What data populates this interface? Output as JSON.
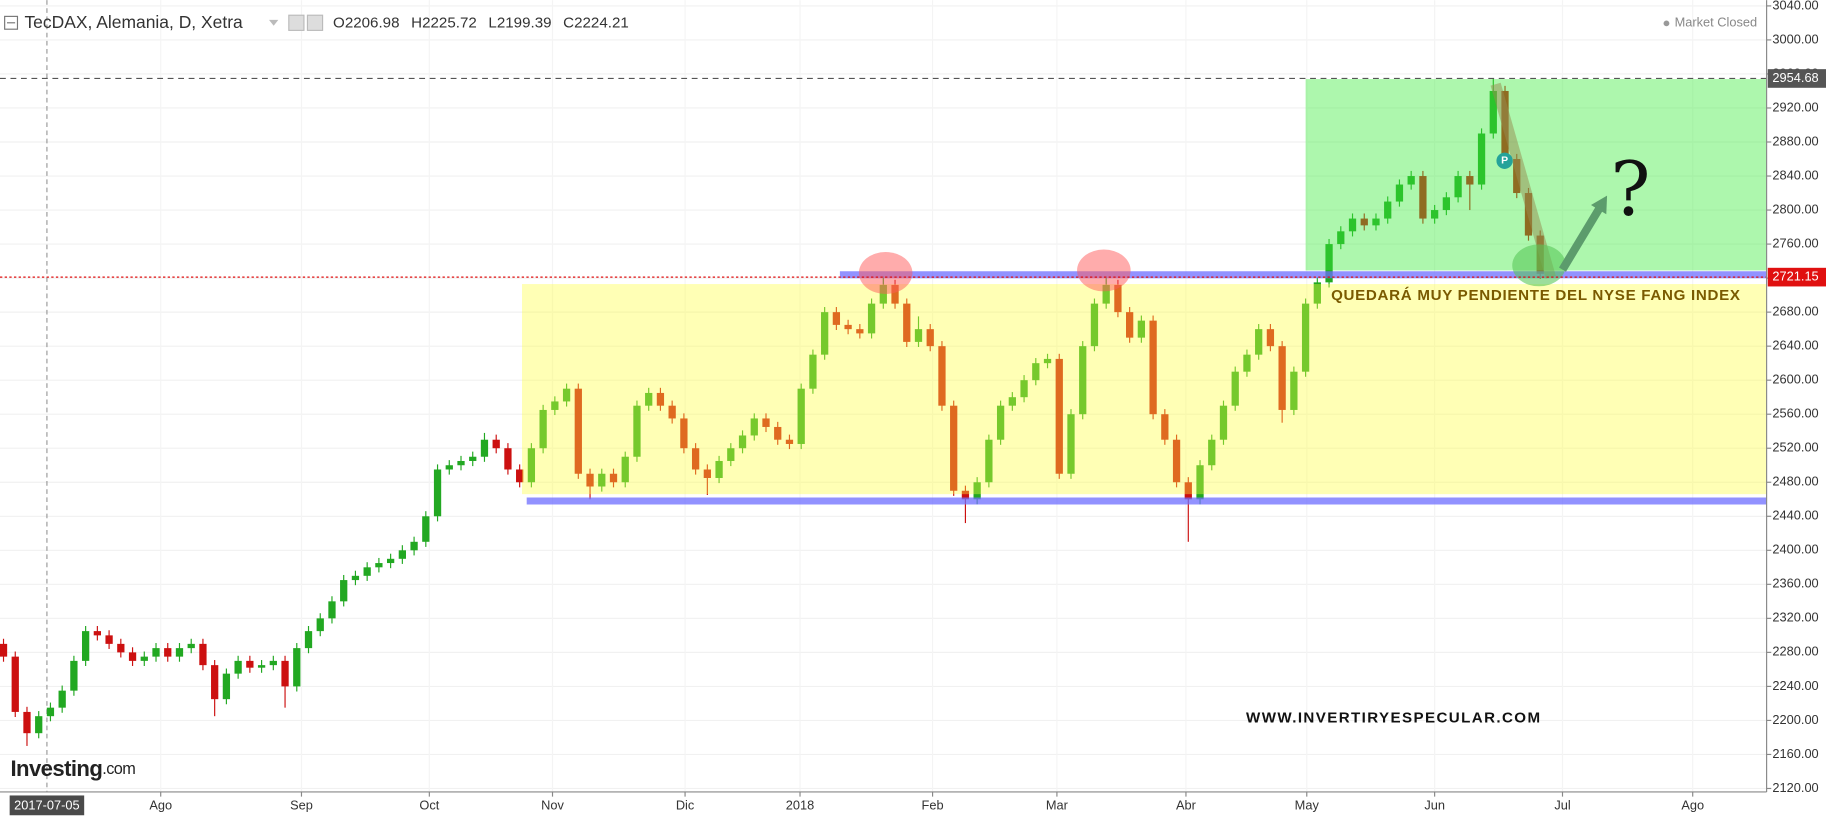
{
  "header": {
    "title": "TecDAX, Alemania, D, Xetra",
    "ohlc": [
      {
        "label": "O",
        "value": 2206.98
      },
      {
        "label": "H",
        "value": 2225.72
      },
      {
        "label": "L",
        "value": 2199.39
      },
      {
        "label": "C",
        "value": 2224.21
      }
    ],
    "status": "Market Closed"
  },
  "logo": {
    "main": "Investing",
    "suffix": ".com"
  },
  "chart_data": {
    "type": "candlestick",
    "up_color": "#22a822",
    "down_color": "#cc1010",
    "xlim": [
      -0.3,
      150.3
    ],
    "ylim": [
      2120,
      3040
    ],
    "xticks": [
      {
        "value": 13.4,
        "label": "Ago"
      },
      {
        "value": 25.4,
        "label": "Sep"
      },
      {
        "value": 36.3,
        "label": "Oct"
      },
      {
        "value": 46.8,
        "label": "Nov"
      },
      {
        "value": 58.1,
        "label": "Dic"
      },
      {
        "value": 67.9,
        "label": "2018"
      },
      {
        "value": 79.2,
        "label": "Feb"
      },
      {
        "value": 89.8,
        "label": "Mar"
      },
      {
        "value": 100.8,
        "label": "Abr"
      },
      {
        "value": 111.1,
        "label": "May"
      },
      {
        "value": 122.0,
        "label": "Jun"
      },
      {
        "value": 132.9,
        "label": "Jul"
      },
      {
        "value": 144.0,
        "label": "Ago"
      }
    ],
    "crosshair": {
      "value": 3.7,
      "label": "2017-07-05"
    },
    "yticks": [
      {
        "value": 2120,
        "label": "2120.00"
      },
      {
        "value": 2160,
        "label": "2160.00"
      },
      {
        "value": 2200,
        "label": "2200.00"
      },
      {
        "value": 2240,
        "label": "2240.00"
      },
      {
        "value": 2280,
        "label": "2280.00"
      },
      {
        "value": 2320,
        "label": "2320.00"
      },
      {
        "value": 2360,
        "label": "2360.00"
      },
      {
        "value": 2400,
        "label": "2400.00"
      },
      {
        "value": 2440,
        "label": "2440.00"
      },
      {
        "value": 2480,
        "label": "2480.00"
      },
      {
        "value": 2520,
        "label": "2520.00"
      },
      {
        "value": 2560,
        "label": "2560.00"
      },
      {
        "value": 2600,
        "label": "2600.00"
      },
      {
        "value": 2640,
        "label": "2640.00"
      },
      {
        "value": 2680,
        "label": "2680.00"
      },
      {
        "value": 2720,
        "label": "2720.00"
      },
      {
        "value": 2760,
        "label": "2760.00"
      },
      {
        "value": 2800,
        "label": "2800.00"
      },
      {
        "value": 2840,
        "label": "2840.00"
      },
      {
        "value": 2880,
        "label": "2880.00"
      },
      {
        "value": 2920,
        "label": "2920.00"
      },
      {
        "value": 2960,
        "label": "2960.00"
      },
      {
        "value": 3000,
        "label": "3000.00"
      },
      {
        "value": 3040,
        "label": "3040.00"
      }
    ],
    "grid": true,
    "price_lines": [
      {
        "value": 2954.68,
        "color": "#555555"
      },
      {
        "value": 2721.15,
        "color": "#e01010"
      }
    ],
    "open": [
      2290,
      2275,
      2210,
      2185,
      2205,
      2215,
      2235,
      2270,
      2305,
      2300,
      2290,
      2280,
      2270,
      2275,
      2285,
      2275,
      2285,
      2290,
      2265,
      2225,
      2255,
      2270,
      2262,
      2265,
      2270,
      2240,
      2285,
      2305,
      2320,
      2340,
      2365,
      2370,
      2380,
      2385,
      2390,
      2400,
      2410,
      2440,
      2495,
      2500,
      2505,
      2510,
      2530,
      2520,
      2495,
      2480,
      2520,
      2565,
      2575,
      2590,
      2490,
      2475,
      2490,
      2480,
      2510,
      2570,
      2585,
      2570,
      2555,
      2520,
      2495,
      2485,
      2505,
      2520,
      2535,
      2555,
      2545,
      2530,
      2525,
      2590,
      2630,
      2680,
      2665,
      2660,
      2655,
      2690,
      2712,
      2690,
      2645,
      2660,
      2640,
      2570,
      2470,
      2460,
      2480,
      2530,
      2570,
      2580,
      2600,
      2620,
      2625,
      2490,
      2560,
      2640,
      2690,
      2712,
      2680,
      2650,
      2670,
      2560,
      2530,
      2480,
      2460,
      2500,
      2530,
      2570,
      2610,
      2630,
      2660,
      2640,
      2565,
      2610,
      2690,
      2715,
      2760,
      2775,
      2790,
      2782,
      2790,
      2810,
      2830,
      2840,
      2790,
      2800,
      2815,
      2840,
      2830,
      2890,
      2940,
      2860,
      2820,
      2770
    ],
    "high": [
      2296,
      2281,
      2216,
      2211,
      2221,
      2241,
      2276,
      2311,
      2311,
      2306,
      2296,
      2286,
      2281,
      2291,
      2291,
      2291,
      2296,
      2296,
      2271,
      2261,
      2276,
      2276,
      2271,
      2276,
      2276,
      2291,
      2311,
      2326,
      2346,
      2371,
      2376,
      2386,
      2391,
      2396,
      2406,
      2416,
      2446,
      2501,
      2506,
      2511,
      2516,
      2538,
      2536,
      2526,
      2501,
      2526,
      2571,
      2581,
      2596,
      2596,
      2496,
      2496,
      2496,
      2516,
      2576,
      2591,
      2591,
      2576,
      2561,
      2526,
      2501,
      2511,
      2526,
      2541,
      2561,
      2561,
      2551,
      2536,
      2596,
      2636,
      2686,
      2686,
      2671,
      2666,
      2696,
      2722,
      2718,
      2696,
      2675,
      2666,
      2646,
      2576,
      2476,
      2486,
      2536,
      2576,
      2586,
      2606,
      2626,
      2631,
      2631,
      2566,
      2646,
      2696,
      2722,
      2718,
      2686,
      2676,
      2676,
      2566,
      2536,
      2486,
      2506,
      2536,
      2576,
      2616,
      2636,
      2666,
      2666,
      2646,
      2616,
      2696,
      2721,
      2766,
      2781,
      2796,
      2796,
      2796,
      2816,
      2836,
      2846,
      2846,
      2806,
      2821,
      2846,
      2846,
      2896,
      2954.68,
      2946,
      2866,
      2826,
      2776
    ],
    "low": [
      2269,
      2204,
      2170,
      2179,
      2199,
      2209,
      2229,
      2264,
      2294,
      2284,
      2274,
      2264,
      2264,
      2269,
      2269,
      2269,
      2279,
      2259,
      2205,
      2219,
      2249,
      2256,
      2256,
      2259,
      2215,
      2234,
      2279,
      2299,
      2314,
      2334,
      2359,
      2364,
      2374,
      2379,
      2384,
      2394,
      2404,
      2434,
      2489,
      2494,
      2499,
      2504,
      2514,
      2489,
      2474,
      2474,
      2514,
      2559,
      2569,
      2484,
      2460,
      2469,
      2474,
      2474,
      2504,
      2564,
      2564,
      2549,
      2514,
      2489,
      2465,
      2479,
      2499,
      2514,
      2529,
      2539,
      2524,
      2519,
      2519,
      2584,
      2624,
      2659,
      2654,
      2649,
      2649,
      2684,
      2684,
      2639,
      2639,
      2634,
      2564,
      2464,
      2432,
      2454,
      2474,
      2524,
      2564,
      2574,
      2594,
      2614,
      2484,
      2484,
      2554,
      2634,
      2684,
      2674,
      2644,
      2644,
      2554,
      2524,
      2474,
      2410,
      2454,
      2494,
      2524,
      2564,
      2604,
      2624,
      2634,
      2550,
      2559,
      2604,
      2684,
      2709,
      2754,
      2769,
      2776,
      2776,
      2784,
      2804,
      2824,
      2784,
      2784,
      2794,
      2809,
      2800,
      2824,
      2884,
      2854,
      2814,
      2764,
      2719
    ],
    "close": [
      2275,
      2210,
      2185,
      2205,
      2215,
      2235,
      2270,
      2305,
      2300,
      2290,
      2280,
      2270,
      2275,
      2285,
      2275,
      2285,
      2290,
      2265,
      2225,
      2255,
      2270,
      2262,
      2265,
      2270,
      2240,
      2285,
      2305,
      2320,
      2340,
      2365,
      2370,
      2380,
      2385,
      2390,
      2400,
      2410,
      2440,
      2495,
      2500,
      2505,
      2510,
      2530,
      2520,
      2495,
      2480,
      2520,
      2565,
      2575,
      2590,
      2490,
      2475,
      2490,
      2480,
      2510,
      2570,
      2585,
      2570,
      2555,
      2520,
      2495,
      2485,
      2505,
      2520,
      2535,
      2555,
      2545,
      2530,
      2525,
      2590,
      2630,
      2680,
      2665,
      2660,
      2655,
      2690,
      2712,
      2690,
      2645,
      2660,
      2640,
      2570,
      2470,
      2460,
      2480,
      2530,
      2570,
      2580,
      2600,
      2620,
      2625,
      2490,
      2560,
      2640,
      2690,
      2712,
      2680,
      2650,
      2670,
      2560,
      2530,
      2480,
      2460,
      2500,
      2530,
      2570,
      2610,
      2630,
      2660,
      2640,
      2565,
      2610,
      2690,
      2715,
      2760,
      2775,
      2790,
      2782,
      2790,
      2810,
      2830,
      2840,
      2790,
      2800,
      2815,
      2840,
      2830,
      2890,
      2940,
      2860,
      2820,
      2770,
      2725
    ],
    "zones": [
      {
        "x": [
          44.2,
          150.3
        ],
        "y": [
          2466,
          2713
        ],
        "color": "rgba(255,255,60,0.38)"
      },
      {
        "x": [
          111,
          150.3
        ],
        "y": [
          2729,
          2954
        ],
        "color": "rgba(60,235,60,0.42)"
      }
    ],
    "levels": [
      {
        "x": [
          44.6,
          150.3
        ],
        "value": 2458,
        "color": "rgba(110,110,255,0.75)"
      },
      {
        "x": [
          71.3,
          150.3
        ],
        "value": 2724,
        "color": "rgba(110,110,255,0.75)"
      }
    ],
    "circles": [
      {
        "x": 75.2,
        "y": 2726,
        "color": "rgba(255,90,90,0.5)"
      },
      {
        "x": 93.8,
        "y": 2729,
        "color": "rgba(255,90,90,0.5)"
      },
      {
        "x": 130.9,
        "y": 2735,
        "color": "rgba(90,200,90,0.6)"
      }
    ],
    "bands": [
      {
        "x": [
          127.2,
          131.9
        ],
        "y": [
          2948,
          2721
        ],
        "color": "rgba(150,140,80,0.5)"
      }
    ],
    "arrows": [
      {
        "x": [
          132.9,
          136.7
        ],
        "y": [
          2730,
          2817
        ],
        "color": "#5c9c6c"
      }
    ],
    "annotations": [
      "QUEDARÁ MUY PENDIENTE DEL NYSE FANG INDEX",
      "WWW.INVERTIRYESPECULAR.COM",
      "?"
    ]
  }
}
